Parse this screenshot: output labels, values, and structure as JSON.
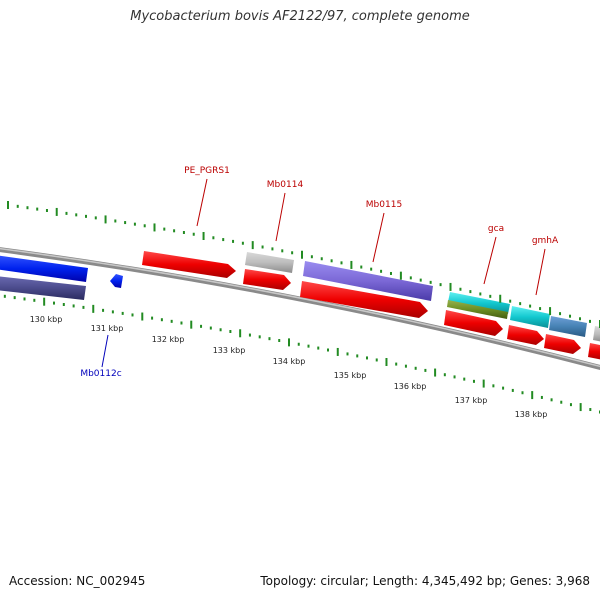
{
  "title": "Mycobacterium bovis AF2122/97, complete genome",
  "accession": "Accession: NC_002945",
  "summary": "Topology: circular; Length: 4,345,492 bp; Genes: 3,968",
  "colors": {
    "forward_gene": "#ee0000",
    "reverse_gene": "#0000dd",
    "forward_label": "#bb0000",
    "reverse_label": "#0000bb",
    "tick": "#228b22",
    "backbone": "#8a8a8a"
  },
  "ticks": [
    "130 kbp",
    "131 kbp",
    "132 kbp",
    "133 kbp",
    "134 kbp",
    "135 kbp",
    "136 kbp",
    "137 kbp",
    "138 kbp"
  ],
  "forward_gene_labels": [
    "PE_PGRS1",
    "Mb0114",
    "Mb0115",
    "gca",
    "gmhA"
  ],
  "reverse_gene_labels": [
    "Mb0112c"
  ]
}
